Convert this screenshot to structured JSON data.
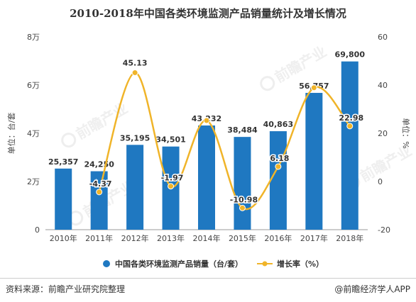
{
  "title": "2010-2018年中国各类环境监测产品销量统计及增长情况",
  "footer": {
    "source": "资料来源：前瞻产业研究院整理",
    "brand": "@前瞻经济学人APP"
  },
  "watermark": "前瞻产业",
  "colors": {
    "bar": "#1f78c1",
    "line": "#f0b429",
    "marker_stroke": "#ffffff"
  },
  "chart_data": {
    "type": "bar",
    "categories": [
      "2010年",
      "2011年",
      "2012年",
      "2013年",
      "2014年",
      "2015年",
      "2016年",
      "2017年",
      "2018年"
    ],
    "series": [
      {
        "name": "中国各类环境监测产品销量（台/套）",
        "type": "bar",
        "axis": "left",
        "values": [
          25357,
          24250,
          35195,
          34501,
          43232,
          38484,
          40863,
          56757,
          69800
        ],
        "labels": [
          "25,357",
          "24,250",
          "35,195",
          "34,501",
          "43,232",
          "38,484",
          "40,863",
          "56,757",
          "69,800"
        ]
      },
      {
        "name": "增长率（%）",
        "type": "line",
        "axis": "right",
        "values": [
          null,
          -4.37,
          45.13,
          -1.97,
          25.3,
          -10.98,
          6.18,
          38.9,
          22.98
        ],
        "labels": [
          "",
          "-4.37",
          "45.13",
          "-1.97",
          "",
          "-10.98",
          "6.18",
          "",
          "22.98"
        ]
      }
    ],
    "yleft": {
      "label": "单位：台/套",
      "min": 0,
      "max": 80000,
      "ticks": [
        0,
        20000,
        40000,
        60000,
        80000
      ],
      "tick_labels": [
        "0",
        "2万",
        "4万",
        "6万",
        "8万"
      ]
    },
    "yright": {
      "label": "单位：%",
      "min": -20,
      "max": 60,
      "ticks": [
        -20,
        0,
        20,
        40,
        60
      ],
      "tick_labels": [
        "-20",
        "0",
        "20",
        "40",
        "60"
      ]
    },
    "legend_position": "bottom",
    "grid": false
  }
}
